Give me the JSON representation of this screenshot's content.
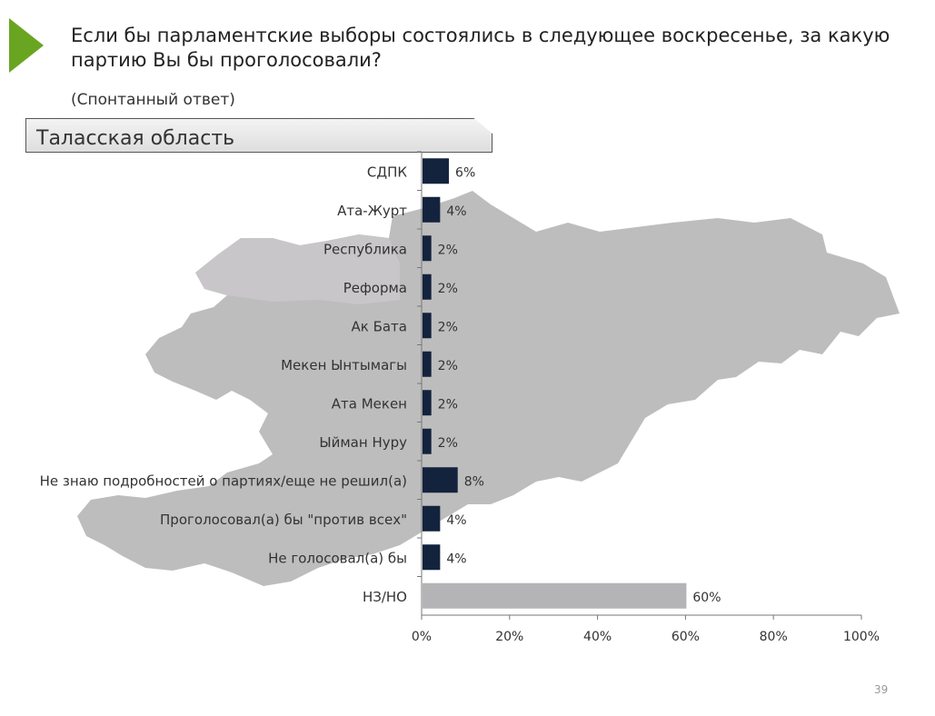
{
  "header": {
    "title": "Если бы парламентские выборы состоялись в следующее воскресенье, за какую партию Вы бы проголосовали?",
    "subtitle": "(Спонтанный ответ)",
    "region": "Таласская область"
  },
  "footer": {
    "page_number": "39"
  },
  "colors": {
    "bar": "#14233d",
    "bar_na": "#b4b4b6",
    "accent_arrow": "#6aa521",
    "map": "#bdbdbd"
  },
  "chart_data": {
    "type": "bar",
    "orientation": "horizontal",
    "title": "Таласская область",
    "categories": [
      "СДПК",
      "Ата-Журт",
      "Республика",
      "Реформа",
      "Ак Бата",
      "Мекен Ынтымагы",
      "Ата Мекен",
      "Ыйман Нуру",
      "Не знаю подробностей о партиях/еще не решил(а)",
      "Проголосовал(а) бы \"против всех\"",
      "Не голосовал(а) бы",
      "НЗ/НО"
    ],
    "values": [
      6,
      4,
      2,
      2,
      2,
      2,
      2,
      2,
      8,
      4,
      4,
      60
    ],
    "value_labels": [
      "6%",
      "4%",
      "2%",
      "2%",
      "2%",
      "2%",
      "2%",
      "2%",
      "8%",
      "4%",
      "4%",
      "60%"
    ],
    "xlim": [
      0,
      100
    ],
    "xticks": [
      0,
      20,
      40,
      60,
      80,
      100
    ],
    "xtick_labels": [
      "0%",
      "20%",
      "40%",
      "60%",
      "80%",
      "100%"
    ],
    "xlabel": "",
    "ylabel": "",
    "grid": false
  }
}
